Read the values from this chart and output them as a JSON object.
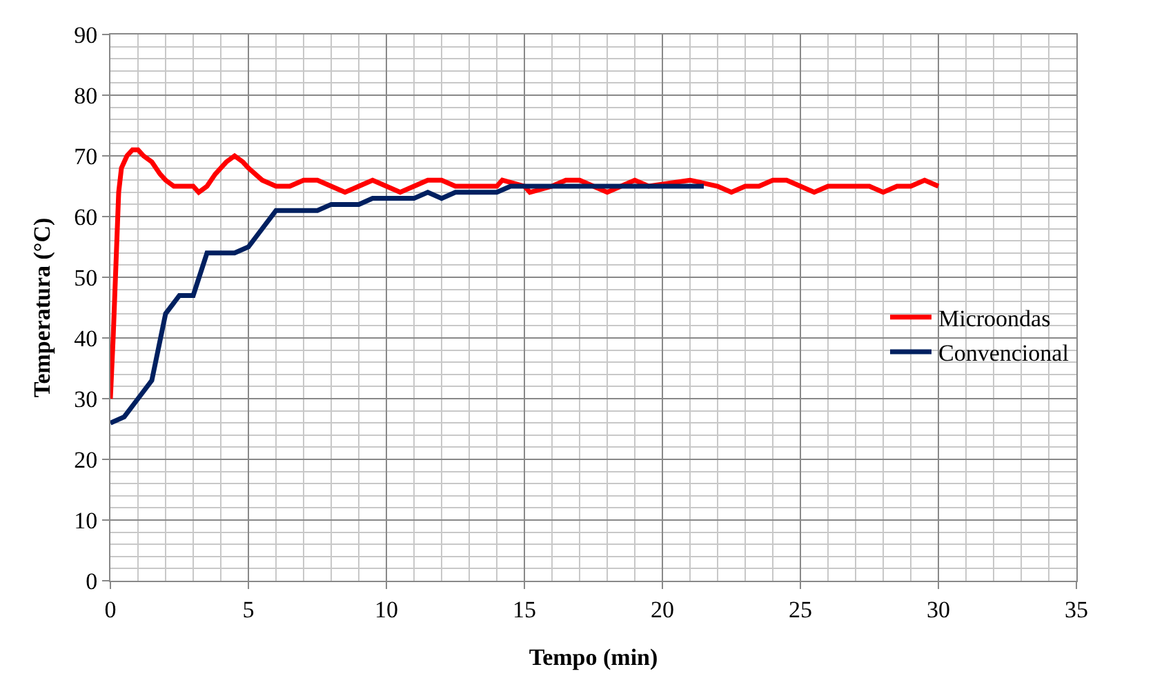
{
  "chart_data": {
    "type": "line",
    "xlabel": "Tempo (min)",
    "ylabel": "Temperatura (°C)",
    "xlim": [
      0,
      35
    ],
    "xticks": [
      0,
      5,
      10,
      15,
      20,
      25,
      30,
      35
    ],
    "ylim": [
      0,
      90
    ],
    "yticks": [
      0,
      10,
      20,
      30,
      40,
      50,
      60,
      70,
      80,
      90
    ],
    "grid": true,
    "legend": "right",
    "marker": "none",
    "line_style": "solid",
    "series": [
      {
        "name": "Microondas",
        "color": "#ff0000",
        "x": [
          0,
          0.1,
          0.2,
          0.3,
          0.4,
          0.6,
          0.8,
          1,
          1.2,
          1.5,
          1.8,
          2,
          2.3,
          3,
          3.2,
          3.5,
          3.8,
          4.2,
          4.5,
          4.8,
          5,
          5.5,
          6,
          6.5,
          7,
          7.5,
          8,
          8.5,
          9,
          9.5,
          10,
          10.5,
          11,
          11.5,
          12,
          12.5,
          14,
          14.2,
          15,
          15.2,
          16,
          16.5,
          17,
          17.5,
          18,
          18.5,
          19,
          19.5,
          21,
          22,
          22.5,
          23,
          23.5,
          24,
          24.5,
          25,
          25.5,
          26,
          27.5,
          28,
          28.5,
          29,
          29.5,
          30
        ],
        "values": [
          30,
          40,
          52,
          64,
          68,
          70,
          71,
          71,
          70,
          69,
          67,
          66,
          65,
          65,
          64,
          65,
          67,
          69,
          70,
          69,
          68,
          66,
          65,
          65,
          66,
          66,
          65,
          64,
          65,
          66,
          65,
          64,
          65,
          66,
          66,
          65,
          65,
          66,
          65,
          64,
          65,
          66,
          66,
          65,
          64,
          65,
          66,
          65,
          66,
          65,
          64,
          65,
          65,
          66,
          66,
          65,
          64,
          65,
          65,
          64,
          65,
          65,
          66,
          65
        ]
      },
      {
        "name": "Convencional",
        "color": "#002060",
        "x": [
          0,
          0.5,
          1,
          1.5,
          2,
          2.5,
          3,
          3.5,
          4.5,
          5,
          6,
          7.5,
          8,
          9,
          9.5,
          11,
          11.5,
          12,
          12.5,
          14,
          14.5,
          21.5
        ],
        "values": [
          26,
          27,
          30,
          33,
          44,
          47,
          47,
          54,
          54,
          55,
          61,
          61,
          62,
          62,
          63,
          63,
          64,
          63,
          64,
          64,
          65,
          65
        ]
      }
    ]
  }
}
